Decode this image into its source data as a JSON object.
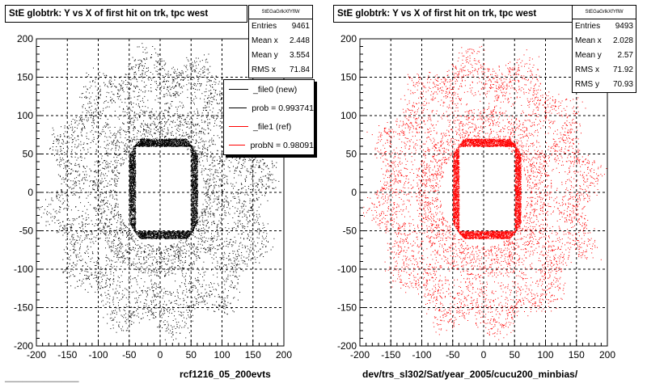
{
  "colors": {
    "series_ref": "#000000",
    "series_new": "#ff0000",
    "grid": "#000000"
  },
  "chart_data": [
    {
      "type": "scatter",
      "title": "StE globtrk: Y vs X of first hit on trk, tpc west",
      "xlabel": "rcf1216_05_200evts",
      "ylabel": "",
      "xlim": [
        -200,
        200
      ],
      "ylim": [
        -200,
        200
      ],
      "x_ticks": [
        -200,
        -150,
        -100,
        -50,
        0,
        50,
        100,
        150,
        200
      ],
      "y_ticks": [
        -200,
        -150,
        -100,
        -50,
        0,
        50,
        100,
        150,
        200
      ],
      "grid": true,
      "color": "#000000",
      "stats": {
        "header": "StEGaGrlkXfYflW",
        "rows": [
          {
            "label": "Entries",
            "value": "9461"
          },
          {
            "label": "Mean x",
            "value": "2.448"
          },
          {
            "label": "Mean y",
            "value": "3.554"
          },
          {
            "label": "RMS x",
            "value": "71.84"
          }
        ]
      },
      "legend": {
        "placement": "top-right",
        "entries": [
          {
            "label": "_file0 (new)",
            "color": "#000000"
          },
          {
            "label": "prob = 0.993741",
            "color": "#000000"
          },
          {
            "label": "_file1 (ref)",
            "color": "#ff0000"
          },
          {
            "label": "probN = 0.98091",
            "color": "#ff0000"
          }
        ]
      },
      "distribution": {
        "entries": 9461,
        "inner_ring_x": [
          -50,
          60
        ],
        "inner_ring_y": [
          -60,
          70
        ],
        "outer_ring_radius": [
          100,
          175
        ]
      }
    },
    {
      "type": "scatter",
      "title": "StE globtrk: Y vs X of first hit on trk, tpc west",
      "xlabel": "dev/trs_sl302/Sat/year_2005/cucu200_minbias/",
      "ylabel": "",
      "xlim": [
        -200,
        200
      ],
      "ylim": [
        -200,
        200
      ],
      "x_ticks": [
        -200,
        -150,
        -100,
        -50,
        0,
        50,
        100,
        150,
        200
      ],
      "y_ticks": [
        -200,
        -150,
        -100,
        -50,
        0,
        50,
        100,
        150,
        200
      ],
      "grid": true,
      "color": "#ff0000",
      "stats": {
        "header": "StEGaGrlkXfYflW",
        "rows": [
          {
            "label": "Entries",
            "value": "9493"
          },
          {
            "label": "Mean x",
            "value": "2.028"
          },
          {
            "label": "Mean y",
            "value": "2.57"
          },
          {
            "label": "RMS x",
            "value": "71.92"
          },
          {
            "label": "RMS y",
            "value": "70.93"
          }
        ]
      },
      "distribution": {
        "entries": 9493,
        "inner_ring_x": [
          -50,
          60
        ],
        "inner_ring_y": [
          -60,
          70
        ],
        "outer_ring_radius": [
          100,
          175
        ]
      }
    }
  ]
}
